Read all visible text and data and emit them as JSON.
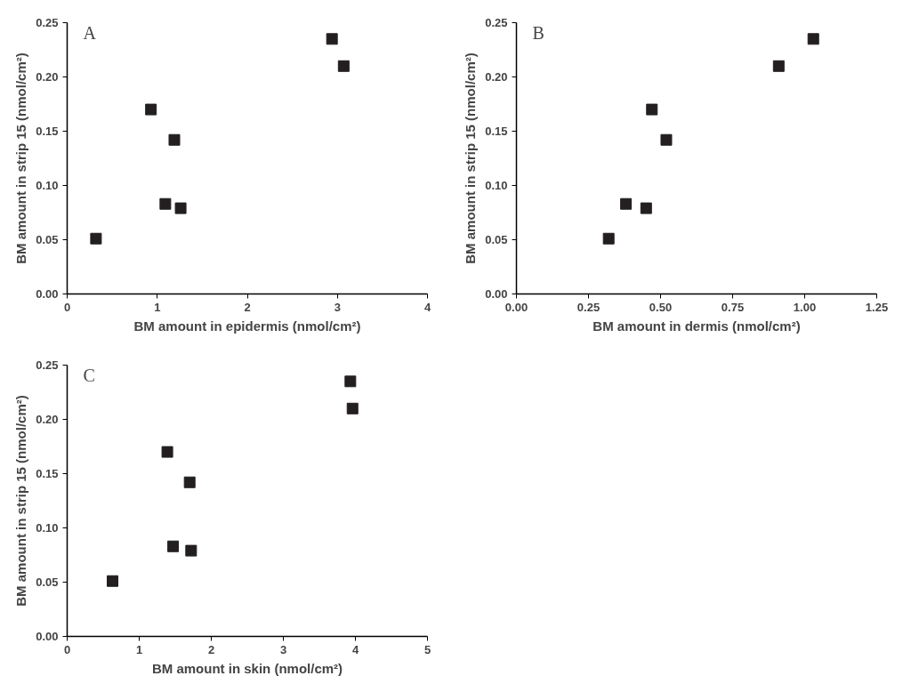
{
  "chart_data": [
    {
      "type": "scatter",
      "xlabel": "BM amount in epidermis (nmol/cm²)",
      "ylabel": "BM amount in strip 15 (nmol/cm²)",
      "annotations": [
        "A"
      ],
      "marker": "square",
      "grid": false,
      "x": [
        0.32,
        0.93,
        1.19,
        1.09,
        1.26,
        2.94,
        3.07
      ],
      "series": [
        {
          "color": "#231f20",
          "values": [
            0.051,
            0.17,
            0.142,
            0.083,
            0.079,
            0.235,
            0.21
          ]
        }
      ],
      "xlim": [
        0,
        4
      ],
      "xticks": [
        0,
        1,
        2,
        3,
        4
      ],
      "ylim": [
        0,
        0.25
      ],
      "yticks": [
        {
          "value": 0,
          "label": "0.00"
        },
        {
          "value": 0.05,
          "label": "0.05"
        },
        {
          "value": 0.1,
          "label": "0.10"
        },
        {
          "value": 0.15,
          "label": "0.15"
        },
        {
          "value": 0.2,
          "label": "0.20"
        },
        {
          "value": 0.25,
          "label": "0.25"
        }
      ]
    },
    {
      "type": "scatter",
      "xlabel": "BM amount in dermis (nmol/cm²)",
      "ylabel": "BM amount in strip 15 (nmol/cm²)",
      "annotations": [
        "B"
      ],
      "marker": "square",
      "grid": false,
      "x": [
        0.32,
        0.47,
        0.52,
        0.38,
        0.45,
        1.03,
        0.91
      ],
      "series": [
        {
          "color": "#231f20",
          "values": [
            0.051,
            0.17,
            0.142,
            0.083,
            0.079,
            0.235,
            0.21
          ]
        }
      ],
      "xlim": [
        0,
        1.25
      ],
      "xticks": [
        {
          "value": 0,
          "label": "0.00"
        },
        0.25,
        {
          "value": 0.5,
          "label": "0.50"
        },
        0.75,
        {
          "value": 1,
          "label": "1.00"
        },
        1.25
      ],
      "ylim": [
        0,
        0.25
      ],
      "yticks": [
        {
          "value": 0,
          "label": "0.00"
        },
        {
          "value": 0.05,
          "label": "0.05"
        },
        {
          "value": 0.1,
          "label": "0.10"
        },
        {
          "value": 0.15,
          "label": "0.15"
        },
        {
          "value": 0.2,
          "label": "0.20"
        },
        {
          "value": 0.25,
          "label": "0.25"
        }
      ]
    },
    {
      "type": "scatter",
      "xlabel": "BM amount in skin (nmol/cm²)",
      "ylabel": "BM amount in strip 15 (nmol/cm²)",
      "annotations": [
        "C"
      ],
      "marker": "square",
      "grid": false,
      "x": [
        0.63,
        1.39,
        1.7,
        1.47,
        1.72,
        3.93,
        3.96
      ],
      "series": [
        {
          "color": "#231f20",
          "values": [
            0.051,
            0.17,
            0.142,
            0.083,
            0.079,
            0.235,
            0.21
          ]
        }
      ],
      "xlim": [
        0,
        5
      ],
      "xticks": [
        0,
        1,
        2,
        3,
        4,
        5
      ],
      "ylim": [
        0,
        0.25
      ],
      "yticks": [
        {
          "value": 0,
          "label": "0.00"
        },
        {
          "value": 0.05,
          "label": "0.05"
        },
        {
          "value": 0.1,
          "label": "0.10"
        },
        {
          "value": 0.15,
          "label": "0.15"
        },
        {
          "value": 0.2,
          "label": "0.20"
        },
        {
          "value": 0.25,
          "label": "0.25"
        }
      ]
    }
  ]
}
